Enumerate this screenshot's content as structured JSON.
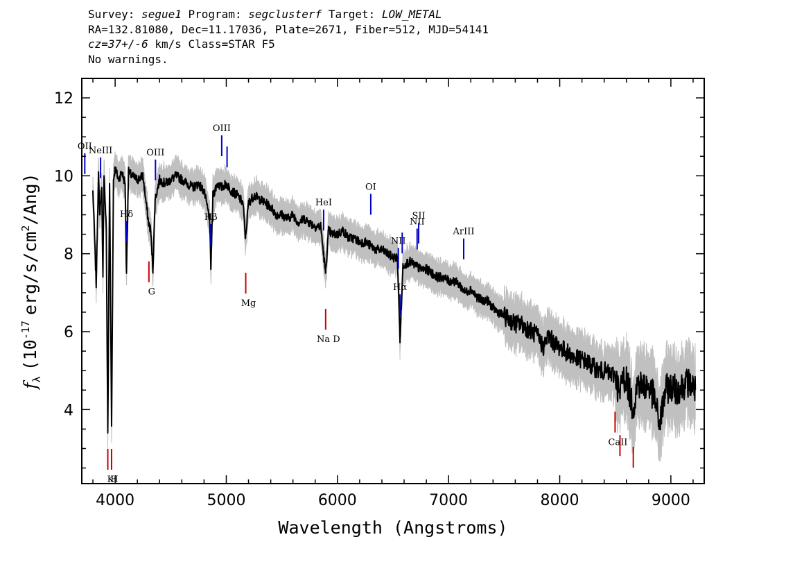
{
  "header": {
    "line1": {
      "survey_label": "Survey:",
      "survey": "segue1",
      "program_label": "Program:",
      "program": "segclusterf",
      "target_label": "Target:",
      "target": "LOW_METAL"
    },
    "line2": "RA=132.81080, Dec=11.17036, Plate=2671, Fiber=512, MJD=54141",
    "line3": {
      "cz": "cz=37+/-6",
      "rest": "km/s Class=STAR F5"
    },
    "line4": "No warnings."
  },
  "colors": {
    "flux": "#000000",
    "error_band": "#c0c0c0",
    "emission_lines": "#0000cc",
    "absorption_lines": "#cc0000",
    "background": "#ffffff"
  },
  "chart_data": {
    "type": "line",
    "xlabel": "Wavelength (Angstroms)",
    "ylabel": "f_λ (10^-17 erg/s/cm^2/Ang)",
    "ylabel_parts": {
      "f": "f",
      "sub": "λ",
      "pre": "(10",
      "exp": "-17",
      "mid": "erg/s/cm",
      "exp2": "2",
      "post": "/Ang)"
    },
    "xlim": [
      3700,
      9300
    ],
    "ylim": [
      2.1,
      12.5
    ],
    "xticks": [
      4000,
      5000,
      6000,
      7000,
      8000,
      9000
    ],
    "yticks": [
      4,
      6,
      8,
      10,
      12
    ],
    "grid": false,
    "series": [
      {
        "role": "flux",
        "x": [
          3800,
          3830,
          3850,
          3860,
          3880,
          3890,
          3900,
          3920,
          3934,
          3950,
          3968,
          3985,
          4000,
          4030,
          4060,
          4090,
          4102,
          4120,
          4150,
          4200,
          4250,
          4300,
          4320,
          4340,
          4360,
          4400,
          4450,
          4500,
          4550,
          4600,
          4650,
          4700,
          4750,
          4800,
          4850,
          4861,
          4880,
          4920,
          4960,
          5000,
          5050,
          5100,
          5150,
          5173,
          5200,
          5250,
          5300,
          5350,
          5400,
          5450,
          5500,
          5550,
          5600,
          5650,
          5700,
          5750,
          5800,
          5850,
          5893,
          5920,
          5950,
          6000,
          6050,
          6100,
          6150,
          6200,
          6250,
          6300,
          6350,
          6400,
          6450,
          6500,
          6540,
          6563,
          6590,
          6650,
          6700,
          6750,
          6800,
          6850,
          6900,
          6950,
          7000,
          7050,
          7100,
          7150,
          7200,
          7250,
          7300,
          7350,
          7400,
          7450,
          7500,
          7550,
          7600,
          7650,
          7700,
          7750,
          7800,
          7850,
          7900,
          7950,
          8000,
          8050,
          8100,
          8150,
          8200,
          8250,
          8300,
          8350,
          8400,
          8450,
          8500,
          8542,
          8560,
          8600,
          8662,
          8700,
          8750,
          8800,
          8850,
          8900,
          8950,
          9000,
          9050,
          9100,
          9150,
          9200,
          9220
        ],
        "y": [
          9.6,
          7.2,
          10.1,
          9.0,
          9.7,
          7.4,
          10.0,
          8.7,
          3.4,
          9.8,
          3.6,
          9.9,
          10.2,
          9.9,
          10.1,
          9.8,
          7.5,
          10.1,
          10.0,
          9.9,
          10.0,
          8.8,
          8.6,
          7.6,
          9.4,
          9.9,
          9.8,
          9.9,
          10.0,
          9.9,
          9.8,
          9.7,
          9.8,
          9.6,
          8.9,
          7.6,
          9.5,
          9.8,
          9.7,
          9.8,
          9.6,
          9.5,
          9.3,
          8.4,
          9.3,
          9.5,
          9.4,
          9.3,
          9.2,
          9.0,
          9.0,
          8.9,
          9.0,
          8.8,
          8.9,
          8.8,
          8.7,
          8.7,
          7.5,
          8.6,
          8.5,
          8.5,
          8.6,
          8.4,
          8.4,
          8.3,
          8.3,
          8.2,
          8.1,
          8.1,
          8.0,
          7.9,
          7.9,
          5.8,
          7.7,
          7.8,
          7.7,
          7.6,
          7.6,
          7.5,
          7.4,
          7.4,
          7.3,
          7.3,
          7.2,
          7.0,
          7.1,
          6.9,
          6.8,
          6.8,
          6.6,
          6.5,
          6.4,
          6.3,
          6.2,
          6.2,
          6.1,
          6.0,
          5.9,
          5.6,
          5.9,
          5.7,
          5.6,
          5.5,
          5.4,
          5.3,
          5.3,
          5.2,
          5.1,
          5.0,
          5.0,
          4.9,
          4.9,
          4.3,
          4.8,
          4.8,
          4.0,
          4.7,
          4.6,
          4.6,
          4.3,
          3.6,
          4.5,
          4.6,
          4.5,
          4.6,
          4.7,
          4.6,
          4.5
        ]
      }
    ],
    "emission_lines": [
      {
        "label": "OII",
        "wavelength": 3727
      },
      {
        "label": "NeIII",
        "wavelength": 3869
      },
      {
        "label": "Hδ",
        "wavelength": 4102
      },
      {
        "label": "OIII",
        "wavelength": 4363
      },
      {
        "label": "Hβ",
        "wavelength": 4861
      },
      {
        "label": "OIII",
        "wavelength": 4959
      },
      {
        "label": "",
        "wavelength": 5007
      },
      {
        "label": "HeI",
        "wavelength": 5876
      },
      {
        "label": "OI",
        "wavelength": 6300
      },
      {
        "label": "NII",
        "wavelength": 6548
      },
      {
        "label": "Hα",
        "wavelength": 6563
      },
      {
        "label": "",
        "wavelength": 6583
      },
      {
        "label": "NII",
        "wavelength": 6717
      },
      {
        "label": "SII",
        "wavelength": 6731
      },
      {
        "label": "ArIII",
        "wavelength": 7136
      }
    ],
    "absorption_lines": [
      {
        "label": "K",
        "wavelength": 3934
      },
      {
        "label": "H",
        "wavelength": 3968
      },
      {
        "label": "G",
        "wavelength": 4304
      },
      {
        "label": "Mg",
        "wavelength": 5175
      },
      {
        "label": "Na D",
        "wavelength": 5894
      },
      {
        "label": "CaII",
        "wavelength": 8498
      },
      {
        "label": "",
        "wavelength": 8542
      },
      {
        "label": "",
        "wavelength": 8662
      }
    ]
  }
}
